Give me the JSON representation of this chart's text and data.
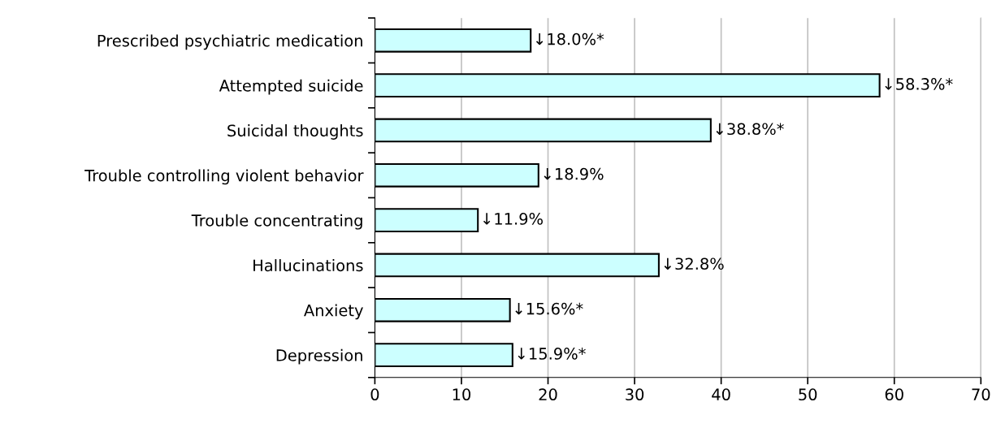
{
  "chart_data": {
    "type": "bar",
    "orientation": "horizontal",
    "categories": [
      "Prescribed psychiatric medication",
      "Attempted suicide",
      "Suicidal thoughts",
      "Trouble controlling violent behavior",
      "Trouble concentrating",
      "Hallucinations",
      "Anxiety",
      "Depression"
    ],
    "values": [
      18.0,
      58.3,
      38.8,
      18.9,
      11.9,
      32.8,
      15.6,
      15.9
    ],
    "value_labels": [
      "↓18.0%*",
      "↓58.3%*",
      "↓38.8%*",
      "↓18.9%",
      "↓11.9%",
      "↓32.8%",
      "↓15.6%*",
      "↓15.9%*"
    ],
    "color": "#ccffff",
    "xlim": [
      0,
      70
    ],
    "xticks": [
      0,
      10,
      20,
      30,
      40,
      50,
      60,
      70
    ],
    "grid": "x",
    "legend": false
  }
}
